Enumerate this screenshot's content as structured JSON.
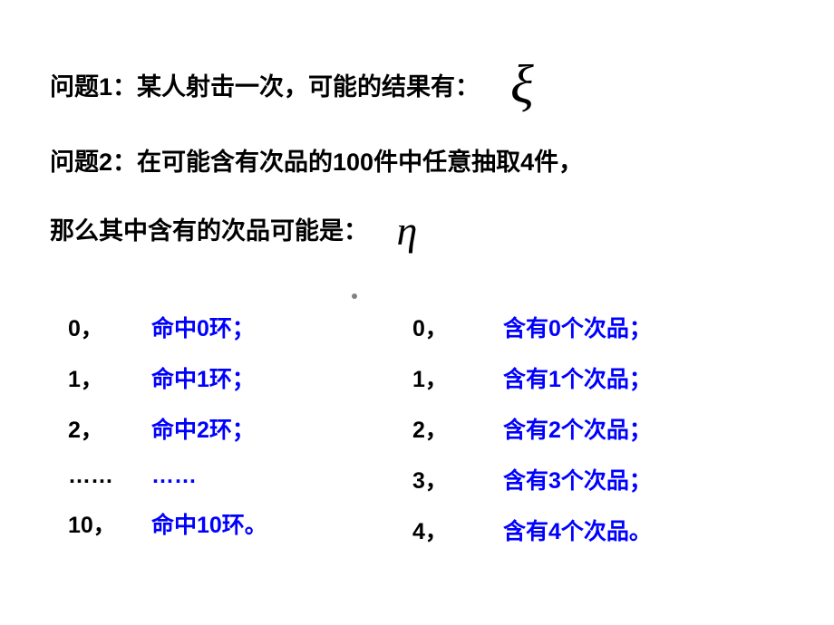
{
  "q1": {
    "text": "问题1：某人射击一次，可能的结果有：",
    "symbol": "ξ"
  },
  "q2": {
    "line1": "问题2：在可能含有次品的100件中任意抽取4件，",
    "line2": "那么其中含有的次品可能是：",
    "symbol": "η"
  },
  "left": [
    {
      "num": "0，",
      "desc": "命中0环；"
    },
    {
      "num": "1，",
      "desc": "命中1环；"
    },
    {
      "num": "2，",
      "desc": "命中2环；"
    },
    {
      "num": "……",
      "desc": "……"
    },
    {
      "num": "10，",
      "desc": "命中10环。"
    }
  ],
  "right": [
    {
      "num": "0，",
      "desc": "含有0个次品；"
    },
    {
      "num": "1，",
      "desc": "含有1个次品；"
    },
    {
      "num": "2，",
      "desc": "含有2个次品；"
    },
    {
      "num": "3，",
      "desc": "含有3个次品；"
    },
    {
      "num": "4，",
      "desc": "含有4个次品。"
    }
  ],
  "colors": {
    "text_black": "#000000",
    "text_blue": "#0000ff",
    "background": "#ffffff"
  }
}
